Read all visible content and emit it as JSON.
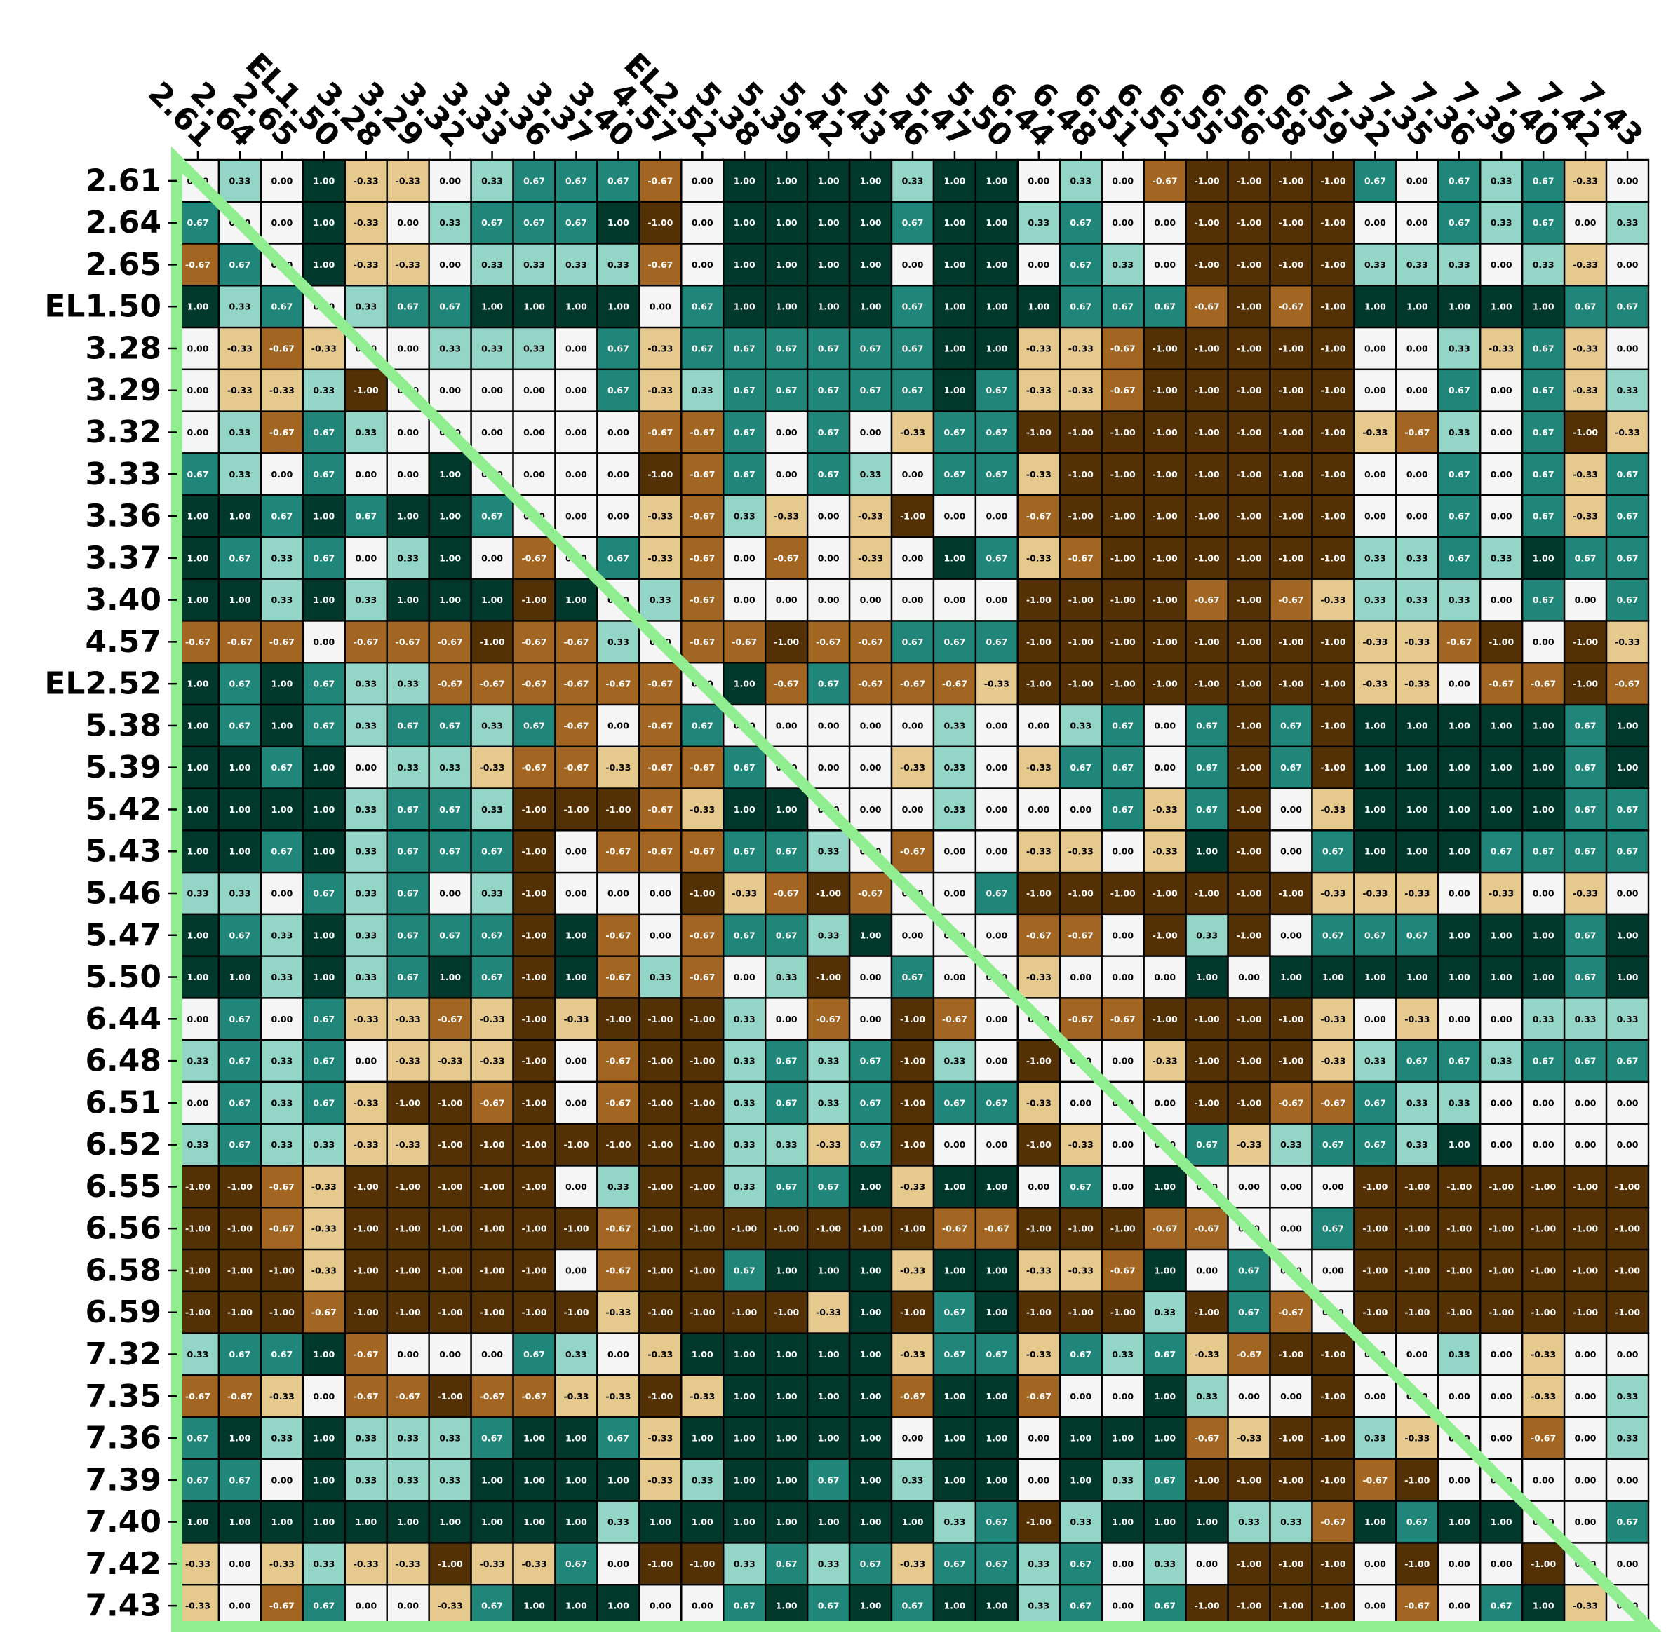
{
  "chart_data": {
    "type": "heatmap",
    "title": "",
    "xlabel": "",
    "ylabel": "",
    "labels": [
      "2.61",
      "2.64",
      "2.65",
      "EL1.50",
      "3.28",
      "3.29",
      "3.32",
      "3.33",
      "3.36",
      "3.37",
      "3.40",
      "4.57",
      "EL2.52",
      "5.38",
      "5.39",
      "5.42",
      "5.43",
      "5.46",
      "5.47",
      "5.50",
      "6.44",
      "6.48",
      "6.51",
      "6.52",
      "6.55",
      "6.56",
      "6.58",
      "6.59",
      "7.32",
      "7.35",
      "7.36",
      "7.39",
      "7.40",
      "7.42",
      "7.43"
    ],
    "value_format": "0.00",
    "vmin": -1.0,
    "vmax": 1.0,
    "colormap": [
      "#543005",
      "#a36622",
      "#e6c98d",
      "#f5f5f5",
      "#93d6c8",
      "#21867a",
      "#00392b"
    ],
    "overlay_color": "#90ee90",
    "overlay": "lower-left triangle outline",
    "values": [
      [
        0,
        0.33,
        0,
        1,
        -0.33,
        -0.33,
        0,
        0.33,
        0.67,
        0.67,
        0.67,
        -0.67,
        0,
        1,
        1,
        1,
        1,
        0.33,
        1,
        1,
        0,
        0.33,
        0,
        -0.67,
        -1,
        -1,
        -1,
        -1,
        0.67,
        0,
        0.67,
        0.33,
        0.67,
        -0.33,
        0
      ],
      [
        0.67,
        0,
        0,
        1,
        -0.33,
        0,
        0.33,
        0.67,
        0.67,
        0.67,
        1,
        -1,
        0,
        1,
        1,
        1,
        1,
        0.67,
        1,
        1,
        0.33,
        0.67,
        0,
        0,
        -1,
        -1,
        -1,
        -1,
        0,
        0,
        0.67,
        0.33,
        0.67,
        0,
        0.33
      ],
      [
        -0.67,
        0.67,
        0,
        1,
        -0.33,
        -0.33,
        0,
        0.33,
        0.33,
        0.33,
        0.33,
        -0.67,
        0,
        1,
        1,
        1,
        1,
        0,
        1,
        1,
        0,
        0.67,
        0.33,
        0,
        -1,
        -1,
        -1,
        -1,
        0.33,
        0.33,
        0.33,
        0,
        0.33,
        -0.33,
        0
      ],
      [
        1,
        0.33,
        0.67,
        0,
        0.33,
        0.67,
        0.67,
        1,
        1,
        1,
        1,
        0,
        0.67,
        1,
        1,
        1,
        1,
        0.67,
        1,
        1,
        1,
        0.67,
        0.67,
        0.67,
        -0.67,
        -1,
        -0.67,
        -1,
        1,
        1,
        1,
        1,
        1,
        0.67,
        0.67
      ],
      [
        0,
        -0.33,
        -0.67,
        -0.33,
        0,
        0,
        0.33,
        0.33,
        0.33,
        0,
        0.67,
        -0.33,
        0.67,
        0.67,
        0.67,
        0.67,
        0.67,
        0.67,
        1,
        1,
        -0.33,
        -0.33,
        -0.67,
        -1,
        -1,
        -1,
        -1,
        -1,
        0,
        0,
        0.33,
        -0.33,
        0.67,
        -0.33,
        0
      ],
      [
        0,
        -0.33,
        -0.33,
        0.33,
        -1,
        0,
        0,
        0,
        0,
        0,
        0.67,
        -0.33,
        0.33,
        0.67,
        0.67,
        0.67,
        0.67,
        0.67,
        1,
        0.67,
        -0.33,
        -0.33,
        -0.67,
        -1,
        -1,
        -1,
        -1,
        -1,
        0,
        0,
        0.67,
        0,
        0.67,
        -0.33,
        0.33
      ],
      [
        0,
        0.33,
        -0.67,
        0.67,
        0.33,
        0,
        0,
        0,
        0,
        0,
        0,
        -0.67,
        -0.67,
        0.67,
        0,
        0.67,
        0,
        -0.33,
        0.67,
        0.67,
        -1,
        -1,
        -1,
        -1,
        -1,
        -1,
        -1,
        -1,
        -0.33,
        -0.67,
        0.33,
        0,
        0.67,
        -1,
        -0.33
      ],
      [
        0.67,
        0.33,
        0,
        0.67,
        0,
        0,
        1,
        0,
        0,
        0,
        0,
        -1,
        -0.67,
        0.67,
        0,
        0.67,
        0.33,
        0,
        0.67,
        0.67,
        -0.33,
        -1,
        -1,
        -1,
        -1,
        -1,
        -1,
        -1,
        0,
        0,
        0.67,
        0,
        0.67,
        -0.33,
        0.67
      ],
      [
        1,
        1,
        0.67,
        1,
        0.67,
        1,
        1,
        0.67,
        0,
        0,
        0,
        -0.33,
        -0.67,
        0.33,
        -0.33,
        0,
        -0.33,
        -1,
        0,
        0,
        -0.67,
        -1,
        -1,
        -1,
        -1,
        -1,
        -1,
        -1,
        0,
        0,
        0.67,
        0,
        0.67,
        -0.33,
        0.67
      ],
      [
        1,
        0.67,
        0.33,
        0.67,
        0,
        0.33,
        1,
        0,
        -0.67,
        0,
        0.67,
        -0.33,
        -0.67,
        0,
        -0.67,
        0,
        -0.33,
        0,
        1,
        0.67,
        -0.33,
        -0.67,
        -1,
        -1,
        -1,
        -1,
        -1,
        -1,
        0.33,
        0.33,
        0.67,
        0.33,
        1,
        0.67,
        0.67
      ],
      [
        1,
        1,
        0.33,
        1,
        0.33,
        1,
        1,
        1,
        -1,
        1,
        0,
        0.33,
        -0.67,
        0,
        0,
        0,
        0,
        0,
        0,
        0,
        -1,
        -1,
        -1,
        -1,
        -0.67,
        -1,
        -0.67,
        -0.33,
        0.33,
        0.33,
        0.33,
        0,
        0.67,
        0,
        0.67
      ],
      [
        -0.67,
        -0.67,
        -0.67,
        0,
        -0.67,
        -0.67,
        -0.67,
        -1,
        -0.67,
        -0.67,
        0.33,
        0,
        -0.67,
        -0.67,
        -1,
        -0.67,
        -0.67,
        0.67,
        0.67,
        0.67,
        -1,
        -1,
        -1,
        -1,
        -1,
        -1,
        -1,
        -1,
        -0.33,
        -0.33,
        -0.67,
        -1,
        0,
        -1,
        -0.33
      ],
      [
        1,
        0.67,
        1,
        0.67,
        0.33,
        0.33,
        -0.67,
        -0.67,
        -0.67,
        -0.67,
        -0.67,
        -0.67,
        0,
        1,
        -0.67,
        0.67,
        -0.67,
        -0.67,
        -0.67,
        -0.33,
        -1,
        -1,
        -1,
        -1,
        -1,
        -1,
        -1,
        -1,
        -0.33,
        -0.33,
        0,
        -0.67,
        -0.67,
        -1,
        -0.67
      ],
      [
        1,
        0.67,
        1,
        0.67,
        0.33,
        0.67,
        0.67,
        0.33,
        0.67,
        -0.67,
        0,
        -0.67,
        0.67,
        0,
        0,
        0,
        0,
        0,
        0.33,
        0,
        0,
        0.33,
        0.67,
        0,
        0.67,
        -1,
        0.67,
        -1,
        1,
        1,
        1,
        1,
        1,
        0.67,
        1
      ],
      [
        1,
        1,
        0.67,
        1,
        0,
        0.33,
        0.33,
        -0.33,
        -0.67,
        -0.67,
        -0.33,
        -0.67,
        -0.67,
        0.67,
        0,
        0,
        0,
        -0.33,
        0.33,
        0,
        -0.33,
        0.67,
        0.67,
        0,
        0.67,
        -1,
        0.67,
        -1,
        1,
        1,
        1,
        1,
        1,
        0.67,
        1
      ],
      [
        1,
        1,
        1,
        1,
        0.33,
        0.67,
        0.67,
        0.33,
        -1,
        -1,
        -1,
        -0.67,
        -0.33,
        1,
        1,
        0,
        0,
        0,
        0.33,
        0,
        0,
        0,
        0.67,
        -0.33,
        0.67,
        -1,
        0,
        -0.33,
        1,
        1,
        1,
        1,
        1,
        0.67,
        0.67
      ],
      [
        1,
        1,
        0.67,
        1,
        0.33,
        0.67,
        0.67,
        0.67,
        -1,
        0,
        -0.67,
        -0.67,
        -0.67,
        0.67,
        0.67,
        0.33,
        0,
        -0.67,
        0,
        0,
        -0.33,
        -0.33,
        0,
        -0.33,
        1,
        -1,
        0,
        0.67,
        1,
        1,
        1,
        0.67,
        0.67,
        0.67,
        0.67
      ],
      [
        0.33,
        0.33,
        0,
        0.67,
        0.33,
        0.67,
        0,
        0.33,
        -1,
        0,
        0,
        0,
        -1,
        -0.33,
        -0.67,
        -1,
        -0.67,
        0,
        0,
        0.67,
        -1,
        -1,
        -1,
        -1,
        -1,
        -1,
        -1,
        -0.33,
        -0.33,
        -0.33,
        0,
        -0.33,
        0,
        -0.33,
        0
      ],
      [
        1,
        0.67,
        0.33,
        1,
        0.33,
        0.67,
        0.67,
        0.67,
        -1,
        1,
        -0.67,
        0,
        -0.67,
        0.67,
        0.67,
        0.33,
        1,
        0,
        0,
        0,
        -0.67,
        -0.67,
        0,
        -1,
        0.33,
        -1,
        0,
        0.67,
        0.67,
        0.67,
        1,
        1,
        1,
        0.67,
        1
      ],
      [
        1,
        1,
        0.33,
        1,
        0.33,
        0.67,
        1,
        0.67,
        -1,
        1,
        -0.67,
        0.33,
        -0.67,
        0,
        0.33,
        -1,
        0,
        0.67,
        0,
        0,
        -0.33,
        0,
        0,
        0,
        1,
        0,
        1,
        1,
        1,
        1,
        1,
        1,
        1,
        0.67,
        1
      ],
      [
        0,
        0.67,
        0,
        0.67,
        -0.33,
        -0.33,
        -0.67,
        -0.33,
        -1,
        -0.33,
        -1,
        -1,
        -1,
        0.33,
        0,
        -0.67,
        0,
        -1,
        -0.67,
        0,
        0,
        -0.67,
        -0.67,
        -1,
        -1,
        -1,
        -1,
        -0.33,
        0,
        -0.33,
        0,
        0,
        0.33,
        0.33,
        0.33
      ],
      [
        0.33,
        0.67,
        0.33,
        0.67,
        0,
        -0.33,
        -0.33,
        -0.33,
        -1,
        0,
        -0.67,
        -1,
        -1,
        0.33,
        0.67,
        0.33,
        0.67,
        -1,
        0.33,
        0,
        -1,
        0,
        0,
        -0.33,
        -1,
        -1,
        -1,
        -0.33,
        0.33,
        0.67,
        0.67,
        0.33,
        0.67,
        0.67,
        0.67
      ],
      [
        0,
        0.67,
        0.33,
        0.67,
        -0.33,
        -1,
        -1,
        -0.67,
        -1,
        0,
        -0.67,
        -1,
        -1,
        0.33,
        0.67,
        0.33,
        0.67,
        -1,
        0.67,
        0.67,
        -0.33,
        0,
        0,
        0,
        -1,
        -1,
        -0.67,
        -0.67,
        0.67,
        0.33,
        0.33,
        0,
        0,
        0,
        0
      ],
      [
        0.33,
        0.67,
        0.33,
        0.33,
        -0.33,
        -0.33,
        -1,
        -1,
        -1,
        -1,
        -1,
        -1,
        -1,
        0.33,
        0.33,
        -0.33,
        0.67,
        -1,
        0,
        0,
        -1,
        -0.33,
        0,
        0,
        0.67,
        -0.33,
        0.33,
        0.67,
        0.67,
        0.33,
        1,
        0,
        0,
        0,
        0
      ],
      [
        -1,
        -1,
        -0.67,
        -0.33,
        -1,
        -1,
        -1,
        -1,
        -1,
        0,
        0.33,
        -1,
        -1,
        0.33,
        0.67,
        0.67,
        1,
        -0.33,
        1,
        1,
        0,
        0.67,
        0,
        1,
        0,
        0,
        0,
        0,
        -1,
        -1,
        -1,
        -1,
        -1,
        -1,
        -1
      ],
      [
        -1,
        -1,
        -0.67,
        -0.33,
        -1,
        -1,
        -1,
        -1,
        -1,
        -1,
        -0.67,
        -1,
        -1,
        -1,
        -1,
        -1,
        -1,
        -1,
        -0.67,
        -0.67,
        -1,
        -1,
        -1,
        -0.67,
        -0.67,
        0,
        0,
        0.67,
        -1,
        -1,
        -1,
        -1,
        -1,
        -1,
        -1
      ],
      [
        -1,
        -1,
        -1,
        -0.33,
        -1,
        -1,
        -1,
        -1,
        -1,
        0,
        -0.67,
        -1,
        -1,
        0.67,
        1,
        1,
        1,
        -0.33,
        1,
        1,
        -0.33,
        -0.33,
        -0.67,
        1,
        0,
        0.67,
        0,
        0,
        -1,
        -1,
        -1,
        -1,
        -1,
        -1,
        -1
      ],
      [
        -1,
        -1,
        -1,
        -0.67,
        -1,
        -1,
        -1,
        -1,
        -1,
        -1,
        -0.33,
        -1,
        -1,
        -1,
        -1,
        -0.33,
        1,
        -1,
        0.67,
        1,
        -1,
        -1,
        -1,
        0.33,
        -1,
        0.67,
        -0.67,
        0,
        -1,
        -1,
        -1,
        -1,
        -1,
        -1,
        -1
      ],
      [
        0.33,
        0.67,
        0.67,
        1,
        -0.67,
        0,
        0,
        0,
        0.67,
        0.33,
        0,
        -0.33,
        1,
        1,
        1,
        1,
        1,
        -0.33,
        0.67,
        0.67,
        -0.33,
        0.67,
        0.33,
        0.67,
        -0.33,
        -0.67,
        -1,
        -1,
        0,
        0,
        0.33,
        0,
        -0.33,
        0,
        0
      ],
      [
        -0.67,
        -0.67,
        -0.33,
        0,
        -0.67,
        -0.67,
        -1,
        -0.67,
        -0.67,
        -0.33,
        -0.33,
        -1,
        -0.33,
        1,
        1,
        1,
        1,
        -0.67,
        1,
        1,
        -0.67,
        0,
        0,
        1,
        0.33,
        0,
        0,
        -1,
        0,
        0,
        0,
        0,
        -0.33,
        0,
        0.33
      ],
      [
        0.67,
        1,
        0.33,
        1,
        0.33,
        0.33,
        0.33,
        0.67,
        1,
        1,
        0.67,
        -0.33,
        1,
        1,
        1,
        1,
        1,
        0,
        1,
        1,
        0,
        1,
        1,
        1,
        -0.67,
        -0.33,
        -1,
        -1,
        0.33,
        -0.33,
        0,
        0,
        -0.67,
        0,
        0.33
      ],
      [
        0.67,
        0.67,
        0,
        1,
        0.33,
        0.33,
        0.33,
        1,
        1,
        1,
        1,
        -0.33,
        0.33,
        1,
        1,
        0.67,
        1,
        0.33,
        1,
        1,
        0,
        1,
        0.33,
        0.67,
        -1,
        -1,
        -1,
        -1,
        -0.67,
        -1,
        0,
        0,
        0,
        0,
        0
      ],
      [
        1,
        1,
        1,
        1,
        1,
        1,
        1,
        1,
        1,
        1,
        0.33,
        1,
        1,
        1,
        1,
        1,
        1,
        1,
        0.33,
        0.67,
        -1,
        0.33,
        1,
        1,
        1,
        0.33,
        0.33,
        -0.67,
        1,
        0.67,
        1,
        1,
        0,
        0,
        0.67
      ],
      [
        -0.33,
        0,
        -0.33,
        0.33,
        -0.33,
        -0.33,
        -1,
        -0.33,
        -0.33,
        0.67,
        0,
        -1,
        -1,
        0.33,
        0.67,
        0.33,
        0.67,
        -0.33,
        0.67,
        0.67,
        0.33,
        0.67,
        0,
        0.33,
        0,
        -1,
        -1,
        -1,
        0,
        -1,
        0,
        0,
        -1,
        0,
        0
      ],
      [
        -0.33,
        0,
        -0.67,
        0.67,
        0,
        0,
        -0.33,
        0.67,
        1,
        1,
        1,
        0,
        0,
        0.67,
        1,
        0.67,
        1,
        0.67,
        1,
        1,
        0.33,
        0.67,
        0,
        0.67,
        -1,
        -1,
        -1,
        -1,
        0,
        -0.67,
        0,
        0.67,
        1,
        -0.33,
        0
      ]
    ]
  }
}
